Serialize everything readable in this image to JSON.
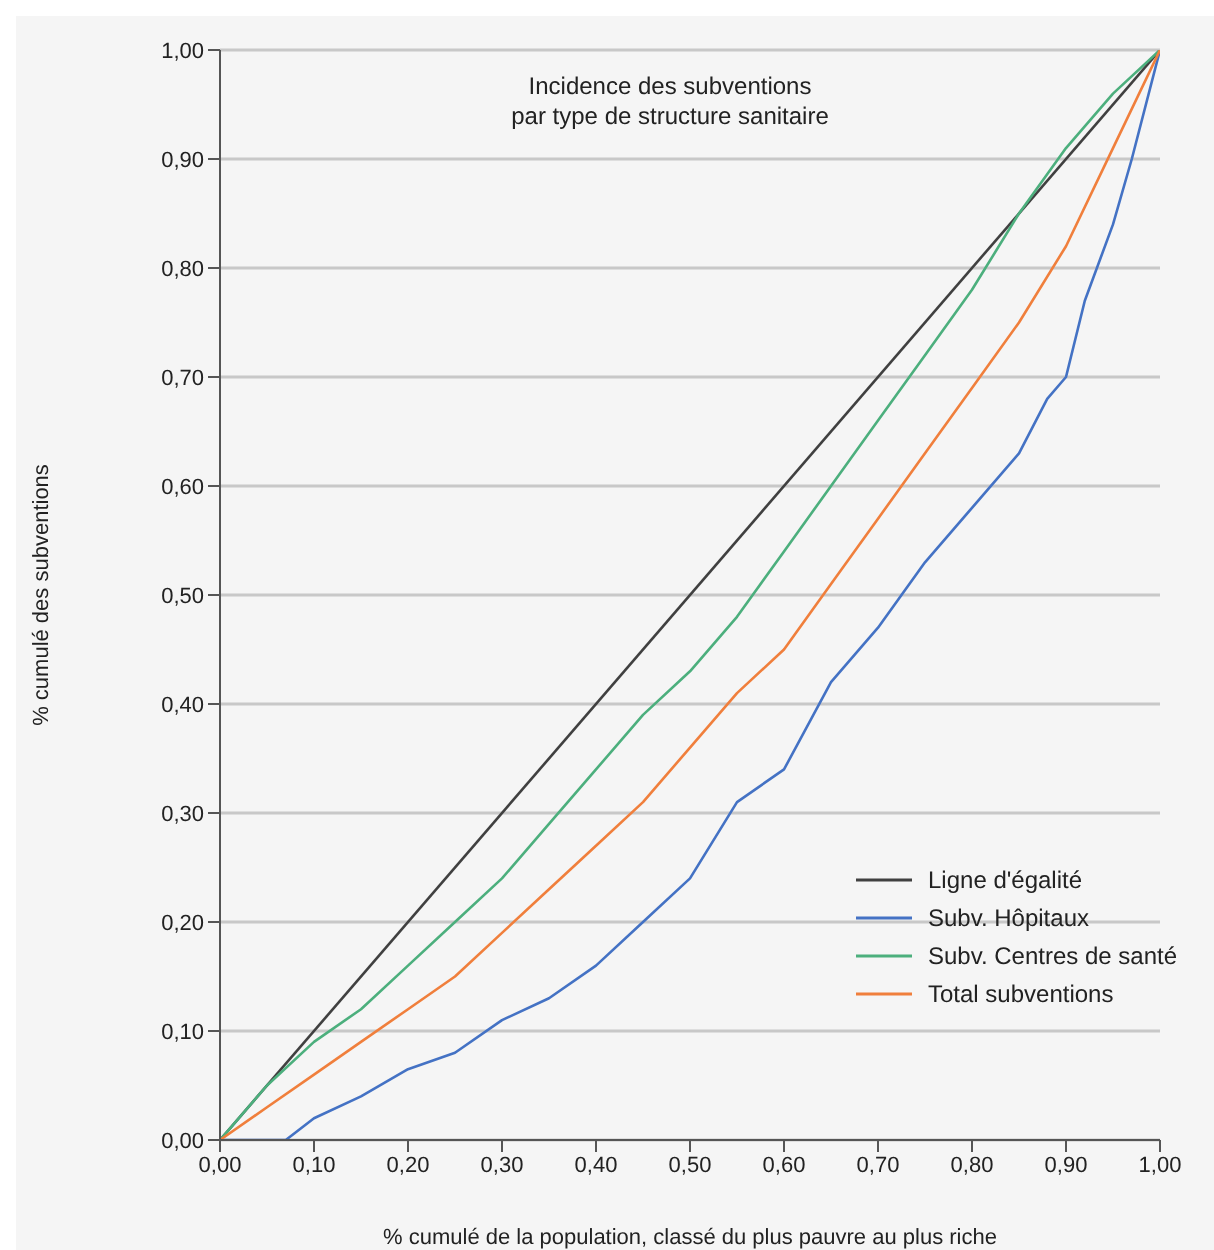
{
  "chart_data": {
    "type": "line",
    "title": "Incidence des subventions\npar type de structure sanitaire",
    "xlabel": "% cumulé de la population, classé du plus pauvre au plus riche",
    "ylabel": "% cumulé des subventions",
    "xlim": [
      0,
      1
    ],
    "ylim": [
      0,
      1
    ],
    "xticks": [
      {
        "value": 0,
        "label": "0,00"
      },
      {
        "value": 0.1,
        "label": "0,10"
      },
      {
        "value": 0.2,
        "label": "0,20"
      },
      {
        "value": 0.3,
        "label": "0,30"
      },
      {
        "value": 0.4,
        "label": "0,40"
      },
      {
        "value": 0.5,
        "label": "0,50"
      },
      {
        "value": 0.6,
        "label": "0,60"
      },
      {
        "value": 0.7,
        "label": "0,70"
      },
      {
        "value": 0.8,
        "label": "0,80"
      },
      {
        "value": 0.9,
        "label": "0,90"
      },
      {
        "value": 1,
        "label": "1,00"
      }
    ],
    "yticks": [
      {
        "value": 0,
        "label": "0,00"
      },
      {
        "value": 0.1,
        "label": "0,10"
      },
      {
        "value": 0.2,
        "label": "0,20"
      },
      {
        "value": 0.3,
        "label": "0,30"
      },
      {
        "value": 0.4,
        "label": "0,40"
      },
      {
        "value": 0.5,
        "label": "0,50"
      },
      {
        "value": 0.6,
        "label": "0,60"
      },
      {
        "value": 0.7,
        "label": "0,70"
      },
      {
        "value": 0.8,
        "label": "0,80"
      },
      {
        "value": 0.9,
        "label": "0,90"
      },
      {
        "value": 1,
        "label": "1,00"
      }
    ],
    "grid": "y",
    "legend": "bottom right",
    "marker": "none",
    "line_style": "solid",
    "series": [
      {
        "name": "Ligne d'égalité",
        "color": "#404040",
        "x": [
          0,
          1
        ],
        "values": [
          0,
          1
        ]
      },
      {
        "name": "Subv. Hôpitaux",
        "color": "#4472c4",
        "x": [
          0,
          0.05,
          0.07,
          0.1,
          0.15,
          0.2,
          0.25,
          0.3,
          0.35,
          0.4,
          0.45,
          0.5,
          0.55,
          0.6,
          0.65,
          0.7,
          0.75,
          0.8,
          0.85,
          0.88,
          0.9,
          0.92,
          0.95,
          0.97,
          1
        ],
        "values": [
          0,
          0,
          0,
          0.02,
          0.04,
          0.065,
          0.08,
          0.11,
          0.13,
          0.16,
          0.2,
          0.24,
          0.31,
          0.34,
          0.42,
          0.47,
          0.53,
          0.58,
          0.63,
          0.68,
          0.7,
          0.77,
          0.84,
          0.9,
          1
        ]
      },
      {
        "name": "Subv. Centres de santé",
        "color": "#4caf7d",
        "x": [
          0,
          0.05,
          0.1,
          0.15,
          0.2,
          0.25,
          0.3,
          0.35,
          0.4,
          0.45,
          0.5,
          0.55,
          0.6,
          0.65,
          0.7,
          0.75,
          0.8,
          0.85,
          0.9,
          0.95,
          1
        ],
        "values": [
          0,
          0.05,
          0.09,
          0.12,
          0.16,
          0.2,
          0.24,
          0.29,
          0.34,
          0.39,
          0.43,
          0.48,
          0.54,
          0.6,
          0.66,
          0.72,
          0.78,
          0.85,
          0.91,
          0.96,
          1
        ]
      },
      {
        "name": "Total subventions",
        "color": "#f07f3c",
        "x": [
          0,
          0.05,
          0.1,
          0.15,
          0.2,
          0.25,
          0.3,
          0.35,
          0.4,
          0.45,
          0.5,
          0.55,
          0.6,
          0.65,
          0.7,
          0.75,
          0.8,
          0.85,
          0.9,
          0.95,
          1
        ],
        "values": [
          0,
          0.03,
          0.06,
          0.09,
          0.12,
          0.15,
          0.19,
          0.23,
          0.27,
          0.31,
          0.36,
          0.41,
          0.45,
          0.51,
          0.57,
          0.63,
          0.69,
          0.75,
          0.82,
          0.91,
          1
        ]
      }
    ]
  }
}
